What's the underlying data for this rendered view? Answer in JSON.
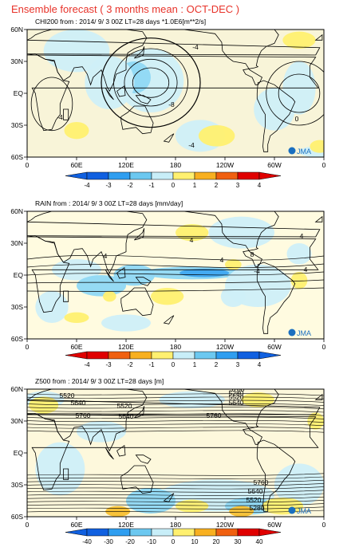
{
  "title": "Ensemble forecast ( 3 months mean : OCT-DEC )",
  "title_color": "#e8332a",
  "logo_text": "JMA",
  "x_ticks": [
    "0",
    "60E",
    "120E",
    "180",
    "120W",
    "60W",
    "0"
  ],
  "y_ticks": [
    "60N",
    "30N",
    "EQ",
    "30S",
    "60S"
  ],
  "panels": [
    {
      "id": "chi200",
      "header": "CHI200  from : 2014/ 9/ 3 00Z LT=28 days   *1.0E6[m**2/s]",
      "colorbar": {
        "labels": [
          "-4",
          "-3",
          "-2",
          "-1",
          "0",
          "1",
          "2",
          "3",
          "4"
        ],
        "colors": [
          "#1060e0",
          "#2f9ef0",
          "#6cc8f0",
          "#c8eef8",
          "#ffffff",
          "#fff070",
          "#f8b020",
          "#f06010",
          "#e00000"
        ]
      },
      "contour_labels": [
        "-4",
        "-8",
        "-4",
        "0",
        "-4"
      ]
    },
    {
      "id": "rain",
      "header": "RAIN   from : 2014/ 9/ 3 00Z LT=28 days   [mm/day]",
      "colorbar": {
        "labels": [
          "-4",
          "-3",
          "-2",
          "-1",
          "0",
          "1",
          "2",
          "3",
          "4"
        ],
        "colors": [
          "#e00000",
          "#f06010",
          "#f8b020",
          "#fff070",
          "#ffffff",
          "#c8eef8",
          "#6cc8f0",
          "#2f9ef0",
          "#1060e0"
        ]
      },
      "contour_labels": [
        "4",
        "4",
        "4",
        "8",
        "-4",
        "4",
        "4"
      ]
    },
    {
      "id": "z500",
      "header": "Z500   from : 2014/ 9/ 3 00Z LT=28 days   [m]",
      "colorbar": {
        "labels": [
          "-40",
          "-30",
          "-20",
          "-10",
          "0",
          "10",
          "20",
          "30",
          "40"
        ],
        "colors": [
          "#1060e0",
          "#2f9ef0",
          "#6cc8f0",
          "#c8eef8",
          "#ffffff",
          "#fff070",
          "#f8b020",
          "#f06010",
          "#e00000"
        ]
      },
      "contour_labels": [
        "5520",
        "5640",
        "5760",
        "5520",
        "5640",
        "5760",
        "5760",
        "5640",
        "5520",
        "5280",
        "5760",
        "5640",
        "5520",
        "5280"
      ]
    }
  ]
}
